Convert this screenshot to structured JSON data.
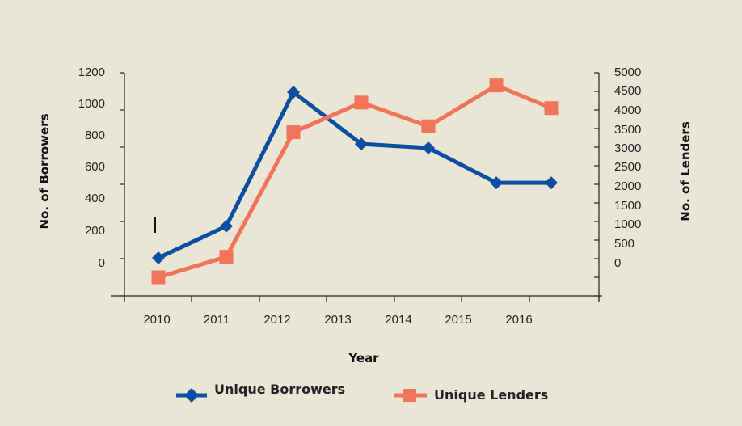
{
  "chart_data": {
    "type": "line",
    "xlabel": "Year",
    "ylabel_left": "No. of Borrowers",
    "ylabel_right": "No. of Lenders",
    "x_tick_labels": [
      "2010",
      "2011",
      "2012",
      "2013",
      "2014",
      "2015",
      "2016"
    ],
    "y_left_ticks": [
      "1200",
      "1000",
      "800",
      "600",
      "400",
      "200",
      "0"
    ],
    "y_right_ticks": [
      "5000",
      "4500",
      "4000",
      "3500",
      "3000",
      "2500",
      "2000",
      "1500",
      "1000",
      "500",
      "0"
    ],
    "series": [
      {
        "name": "Unique Borrowers",
        "axis": "left",
        "color": "#0b4ea2",
        "marker": "diamond",
        "points": [
          {
            "x": "2010",
            "y": 5
          },
          {
            "x": "2011",
            "y": 210
          },
          {
            "x": "2012",
            "y": 1075
          },
          {
            "x": "2013",
            "y": 740
          },
          {
            "x": "2014",
            "y": 715
          },
          {
            "x": "2015",
            "y": 490
          },
          {
            "x": "2016",
            "y": 490
          }
        ]
      },
      {
        "name": "Unique Lenders",
        "axis": "right",
        "color": "#f07457",
        "marker": "square",
        "points": [
          {
            "x": "2010",
            "y": -500
          },
          {
            "x": "2011",
            "y": 50
          },
          {
            "x": "2012",
            "y": 3400
          },
          {
            "x": "2013",
            "y": 4200
          },
          {
            "x": "2014",
            "y": 3560
          },
          {
            "x": "2015",
            "y": 4660
          },
          {
            "x": "2016",
            "y": 4050
          }
        ]
      }
    ],
    "legend_position": "bottom",
    "grid": false
  }
}
